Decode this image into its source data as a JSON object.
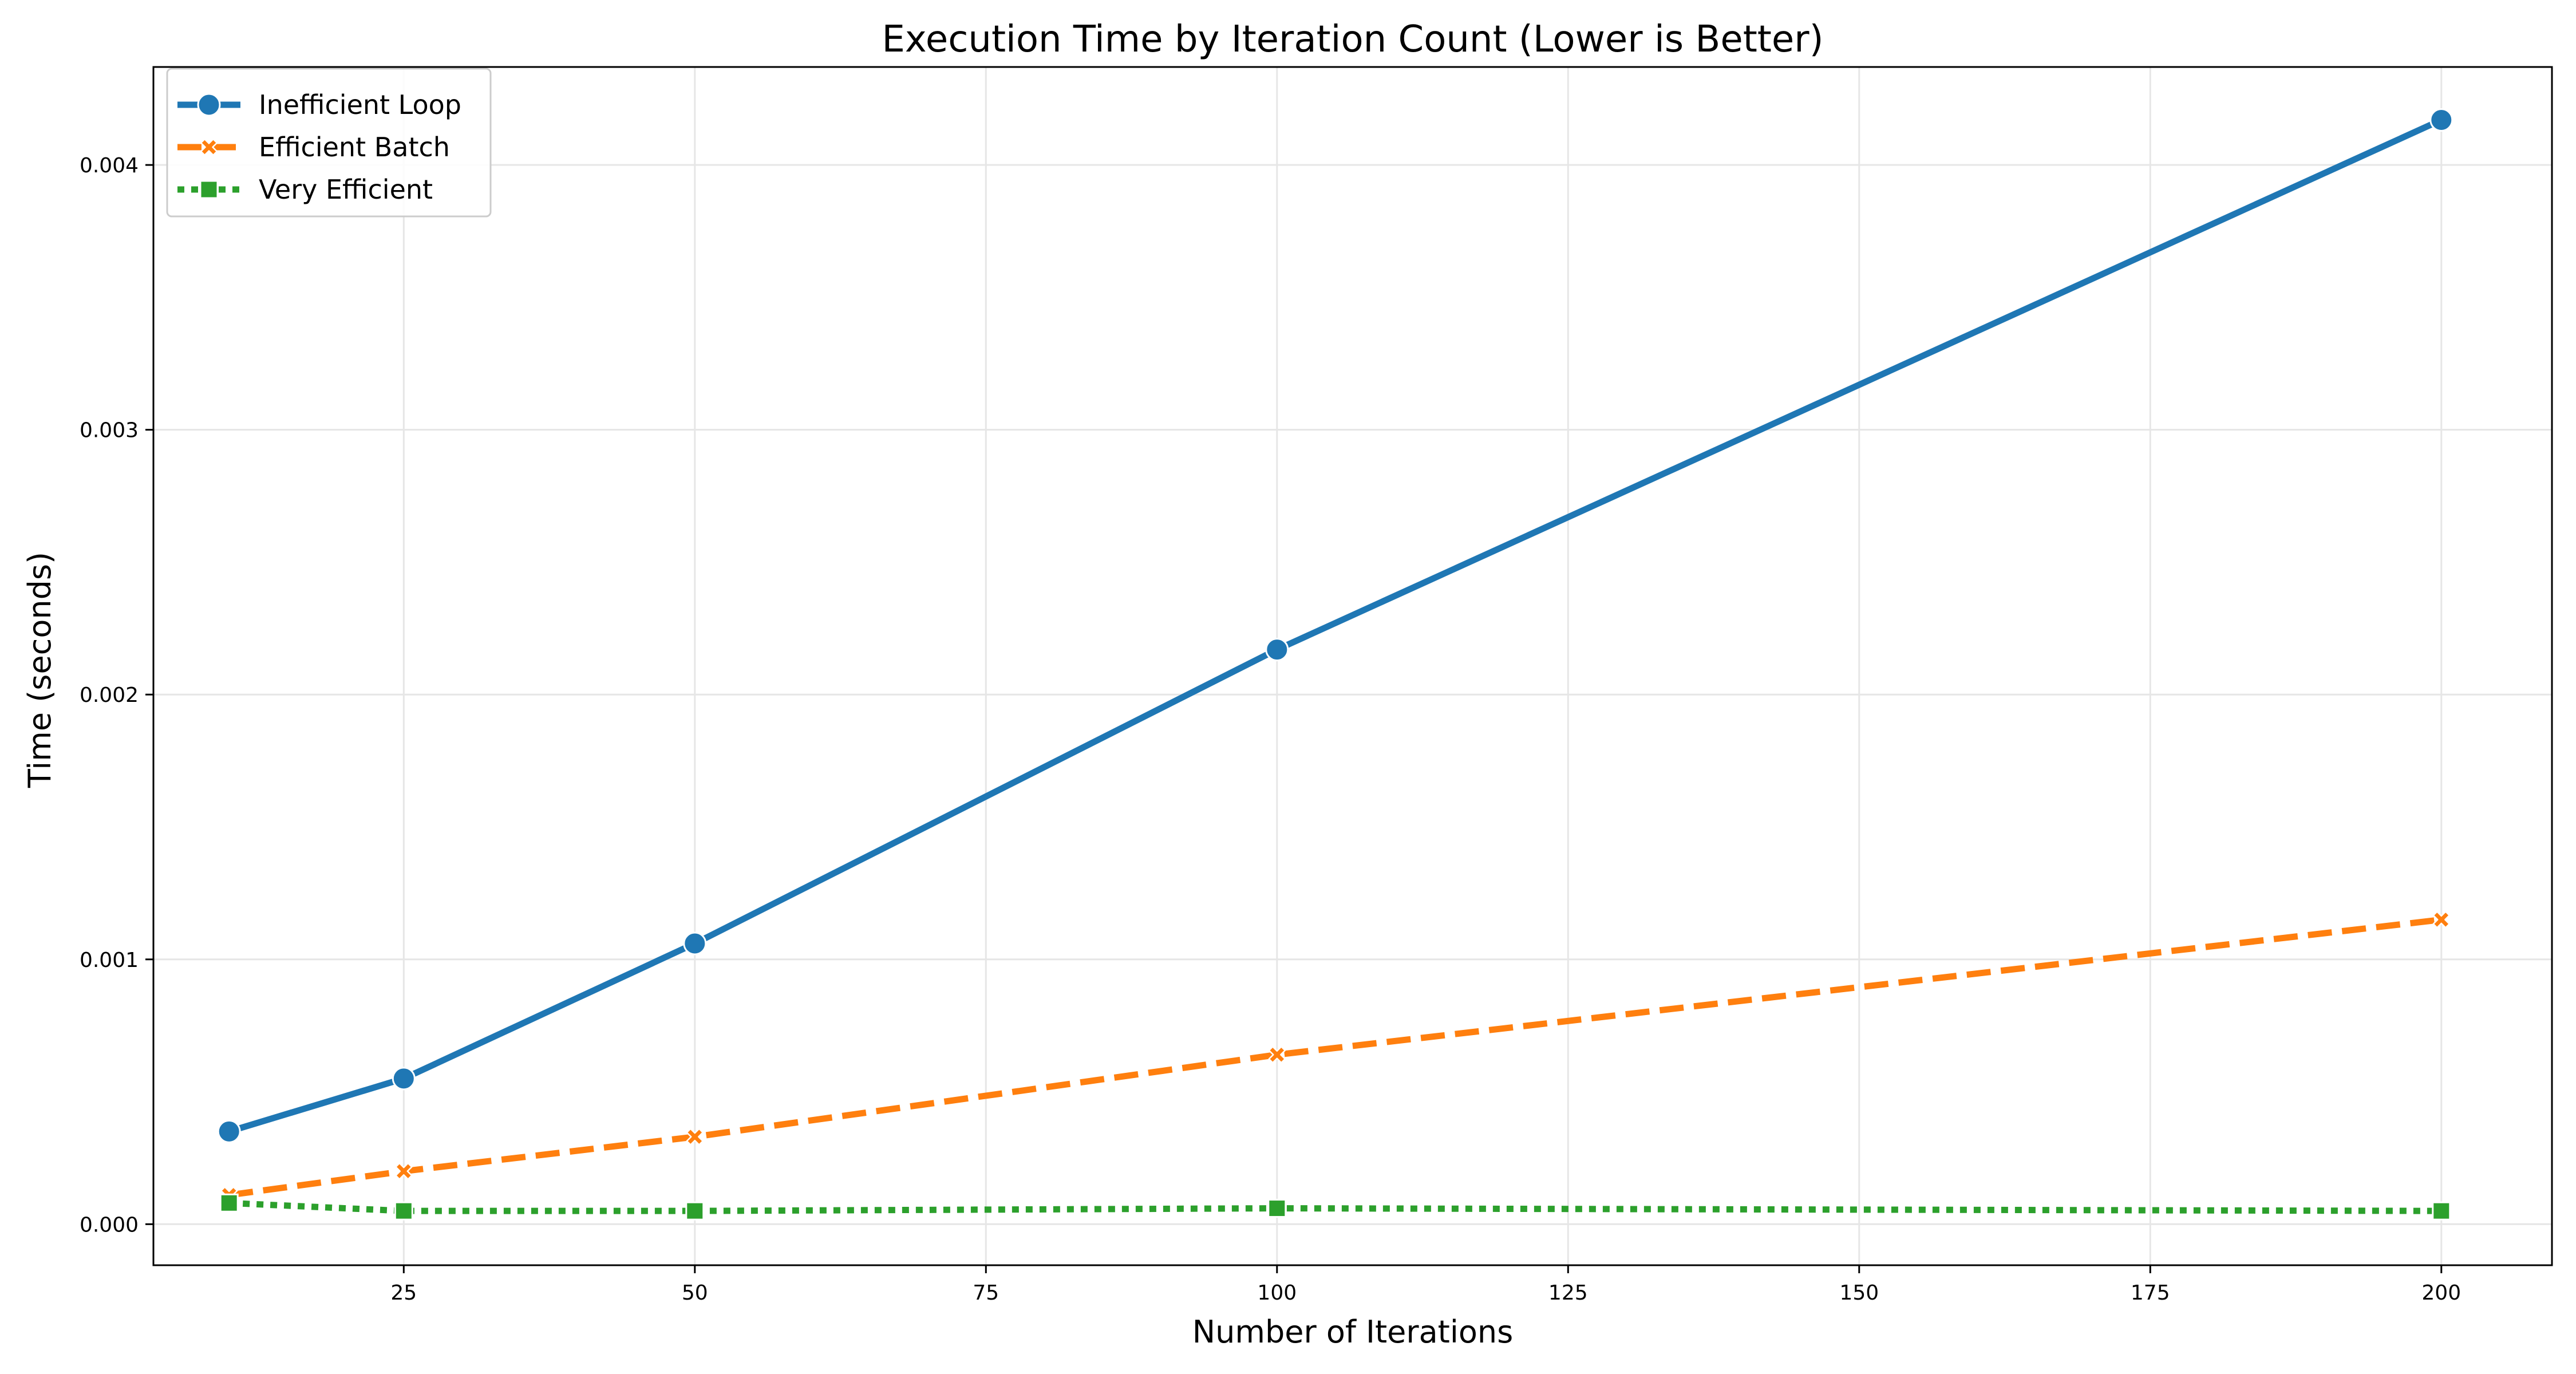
{
  "chart_data": {
    "type": "line",
    "title": "Execution Time by Iteration Count (Lower is Better)",
    "xlabel": "Number of Iterations",
    "ylabel": "Time (seconds)",
    "x": [
      10,
      25,
      50,
      100,
      200
    ],
    "xlim": [
      3.5,
      209.5
    ],
    "ylim": [
      -0.000155,
      0.00437
    ],
    "xticks": [
      25,
      50,
      75,
      100,
      125,
      150,
      175,
      200
    ],
    "xtick_labels": [
      "25",
      "50",
      "75",
      "100",
      "125",
      "150",
      "175",
      "200"
    ],
    "yticks": [
      0.0,
      0.001,
      0.002,
      0.003,
      0.004
    ],
    "ytick_labels": [
      "0.000",
      "0.001",
      "0.002",
      "0.003",
      "0.004"
    ],
    "grid": true,
    "legend_position": "top-left",
    "series": [
      {
        "name": "Inefficient Loop",
        "values": [
          0.00035,
          0.00055,
          0.00106,
          0.00217,
          0.00417
        ],
        "color": "#1f77b4",
        "line_style": "solid",
        "marker": "circle"
      },
      {
        "name": "Efficient Batch",
        "values": [
          0.00011,
          0.0002,
          0.00033,
          0.00064,
          0.00115
        ],
        "color": "#ff7f0e",
        "line_style": "dashed",
        "marker": "x"
      },
      {
        "name": "Very Efficient",
        "values": [
          8e-05,
          5e-05,
          5e-05,
          6e-05,
          5e-05
        ],
        "color": "#2ca02c",
        "line_style": "dotted",
        "marker": "square"
      }
    ]
  }
}
